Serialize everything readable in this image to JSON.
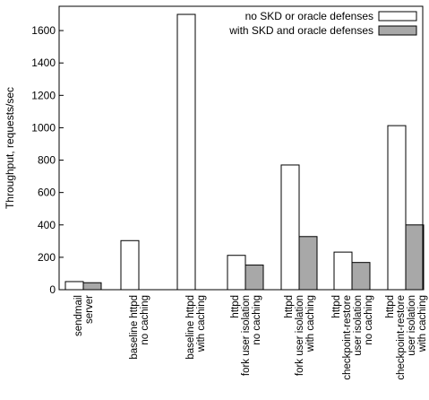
{
  "chart_data": {
    "type": "bar",
    "ylabel": "Throughput, requests/sec",
    "ylim": [
      0,
      1750
    ],
    "yticks": [
      0,
      200,
      400,
      600,
      800,
      1000,
      1200,
      1400,
      1600
    ],
    "grid": false,
    "legend_position": "top-right",
    "categories": [
      [
        "sendmail",
        "server"
      ],
      [
        "baseline httpd",
        "no caching"
      ],
      [
        "baseline httpd",
        "with caching"
      ],
      [
        "httpd",
        "fork user isolation",
        "no caching"
      ],
      [
        "httpd",
        "fork user isolation",
        "with caching"
      ],
      [
        "httpd",
        "checkpoint-restore",
        "user isolation",
        "no caching"
      ],
      [
        "httpd",
        "checkpoint-restore",
        "user isolation",
        "with caching"
      ]
    ],
    "series": [
      {
        "name": "no SKD or oracle defenses",
        "color": "#ffffff",
        "values": [
          50,
          303,
          1700,
          212,
          770,
          232,
          1013
        ]
      },
      {
        "name": "with SKD and oracle defenses",
        "color": "#a8a8a8",
        "values": [
          43,
          0,
          0,
          152,
          328,
          168,
          400
        ]
      }
    ]
  }
}
